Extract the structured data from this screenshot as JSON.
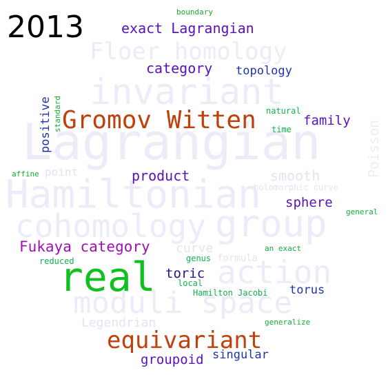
{
  "year": "2013",
  "colors": {
    "red_orange": "#c0400b",
    "green": "#10c020",
    "purple": "#5a10bb",
    "blue": "#2034a8",
    "magenta": "#a010b0",
    "teal": "#10b050",
    "background_word": "#ececf9"
  },
  "words": {
    "lagrangian": "Lagrangian",
    "hamiltonian": "Hamiltonian",
    "invariant": "invariant",
    "cohomology": "cohomology",
    "group": "group",
    "moduli_space": "moduli space",
    "action": "action",
    "floer_homology": "Floer homology",
    "poisson": "Poisson",
    "smooth": "smooth",
    "legendrian": "Legendrian",
    "curve": "curve",
    "point": "point",
    "holomorphic_curve": "holomorphic curve",
    "formula": "formula",
    "gromov_witten": "Gromov Witten",
    "real": "real",
    "equivariant": "equivariant",
    "exact_lagrangian": "exact Lagrangian",
    "category": "category",
    "topology": "topology",
    "family": "family",
    "positive": "positive",
    "product": "product",
    "sphere": "sphere",
    "fukaya_category": "Fukaya category",
    "toric": "toric",
    "torus": "torus",
    "groupoid": "groupoid",
    "singular": "singular",
    "boundary": "boundary",
    "standard": "standard",
    "natural": "natural",
    "time": "time",
    "affine": "affine",
    "general": "general",
    "an_exact": "an exact",
    "reduced": "reduced",
    "genus": "genus",
    "local": "local",
    "hamilton_jacobi": "Hamilton Jacobi",
    "generalize": "generalize"
  }
}
